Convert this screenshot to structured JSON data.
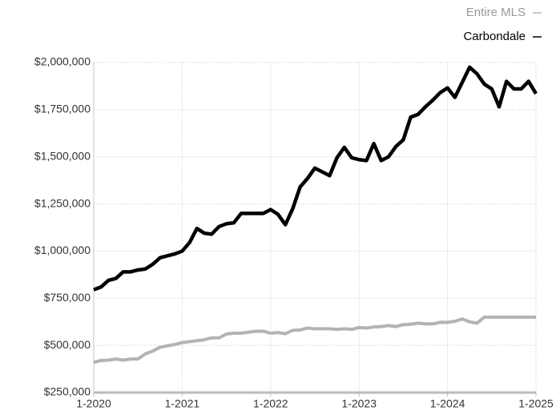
{
  "chart_data": {
    "type": "line",
    "x": [
      "2020-01",
      "2020-02",
      "2020-03",
      "2020-04",
      "2020-05",
      "2020-06",
      "2020-07",
      "2020-08",
      "2020-09",
      "2020-10",
      "2020-11",
      "2020-12",
      "2021-01",
      "2021-02",
      "2021-03",
      "2021-04",
      "2021-05",
      "2021-06",
      "2021-07",
      "2021-08",
      "2021-09",
      "2021-10",
      "2021-11",
      "2021-12",
      "2022-01",
      "2022-02",
      "2022-03",
      "2022-04",
      "2022-05",
      "2022-06",
      "2022-07",
      "2022-08",
      "2022-09",
      "2022-10",
      "2022-11",
      "2022-12",
      "2023-01",
      "2023-02",
      "2023-03",
      "2023-04",
      "2023-05",
      "2023-06",
      "2023-07",
      "2023-08",
      "2023-09",
      "2023-10",
      "2023-11",
      "2023-12",
      "2024-01",
      "2024-02",
      "2024-03",
      "2024-04",
      "2024-05",
      "2024-06",
      "2024-07",
      "2024-08",
      "2024-09",
      "2024-10",
      "2024-11",
      "2024-12",
      "2025-01"
    ],
    "series": [
      {
        "name": "Entire MLS",
        "color": "#b3b3b3",
        "values": [
          410000,
          420000,
          422000,
          428000,
          422000,
          428000,
          428000,
          455000,
          470000,
          490000,
          498000,
          505000,
          515000,
          520000,
          525000,
          530000,
          540000,
          540000,
          560000,
          565000,
          565000,
          570000,
          575000,
          575000,
          565000,
          568000,
          562000,
          580000,
          582000,
          592000,
          588000,
          588000,
          588000,
          585000,
          588000,
          585000,
          595000,
          592000,
          598000,
          600000,
          605000,
          600000,
          610000,
          612000,
          618000,
          614000,
          614000,
          622000,
          622000,
          628000,
          640000,
          625000,
          618000,
          650000,
          650000,
          650000,
          650000,
          650000,
          650000,
          650000,
          650000
        ]
      },
      {
        "name": "Carbondale",
        "color": "#000000",
        "values": [
          795000,
          810000,
          845000,
          855000,
          890000,
          890000,
          900000,
          905000,
          930000,
          965000,
          975000,
          985000,
          1000000,
          1045000,
          1120000,
          1095000,
          1090000,
          1130000,
          1145000,
          1150000,
          1200000,
          1200000,
          1200000,
          1200000,
          1220000,
          1195000,
          1140000,
          1225000,
          1340000,
          1385000,
          1440000,
          1420000,
          1400000,
          1495000,
          1550000,
          1495000,
          1485000,
          1480000,
          1570000,
          1480000,
          1500000,
          1555000,
          1590000,
          1710000,
          1725000,
          1765000,
          1800000,
          1840000,
          1865000,
          1815000,
          1895000,
          1975000,
          1940000,
          1885000,
          1860000,
          1765000,
          1900000,
          1860000,
          1860000,
          1900000,
          1835000
        ]
      }
    ],
    "xlim": [
      "2020-01",
      "2025-01"
    ],
    "xticks": [
      {
        "value": "2020-01",
        "label": "1-2020"
      },
      {
        "value": "2021-01",
        "label": "1-2021"
      },
      {
        "value": "2022-01",
        "label": "1-2022"
      },
      {
        "value": "2023-01",
        "label": "1-2023"
      },
      {
        "value": "2024-01",
        "label": "1-2024"
      },
      {
        "value": "2025-01",
        "label": "1-2025"
      }
    ],
    "ylim": [
      250000,
      2000000
    ],
    "yticks": [
      {
        "value": 250000,
        "label": "$250,000"
      },
      {
        "value": 500000,
        "label": "$500,000"
      },
      {
        "value": 750000,
        "label": "$750,000"
      },
      {
        "value": 1000000,
        "label": "$1,000,000"
      },
      {
        "value": 1250000,
        "label": "$1,250,000"
      },
      {
        "value": 1500000,
        "label": "$1,500,000"
      },
      {
        "value": 1750000,
        "label": "$1,750,000"
      },
      {
        "value": 2000000,
        "label": "$2,000,000"
      }
    ],
    "grid": true
  }
}
